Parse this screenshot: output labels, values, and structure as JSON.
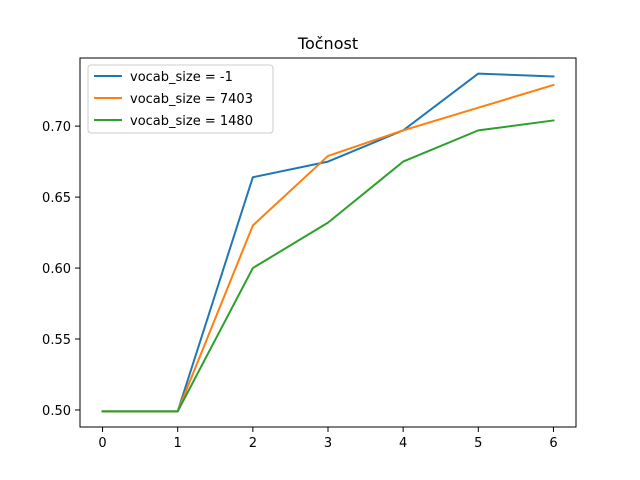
{
  "chart_data": {
    "type": "line",
    "title": "Točnost",
    "xlabel": "",
    "ylabel": "",
    "x": [
      0,
      1,
      2,
      3,
      4,
      5,
      6
    ],
    "xlim": [
      -0.3,
      6.3
    ],
    "ylim": [
      0.488,
      0.748
    ],
    "xticks": [
      0,
      1,
      2,
      3,
      4,
      5,
      6
    ],
    "yticks": [
      0.5,
      0.55,
      0.6,
      0.65,
      0.7
    ],
    "ytick_labels": [
      "0.50",
      "0.55",
      "0.60",
      "0.65",
      "0.70"
    ],
    "grid": false,
    "legend_position": "upper-left",
    "series": [
      {
        "name": "vocab_size = -1",
        "color": "#1f77b4",
        "values": [
          0.499,
          0.499,
          0.664,
          0.675,
          0.697,
          0.737,
          0.735
        ]
      },
      {
        "name": "vocab_size = 7403",
        "color": "#ff7f0e",
        "values": [
          0.499,
          0.499,
          0.63,
          0.679,
          0.697,
          0.713,
          0.729
        ]
      },
      {
        "name": "vocab_size = 1480",
        "color": "#2ca02c",
        "values": [
          0.499,
          0.499,
          0.6,
          0.632,
          0.675,
          0.697,
          0.704
        ]
      }
    ]
  }
}
